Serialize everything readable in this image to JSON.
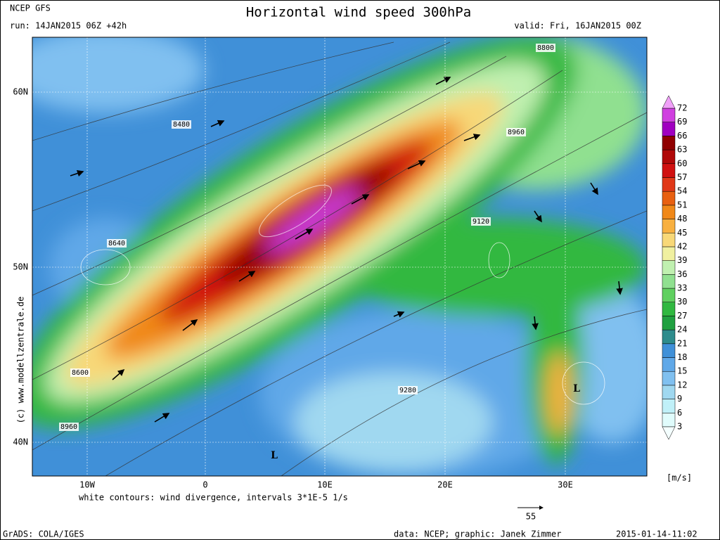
{
  "header": {
    "model": "NCEP GFS",
    "run": "run: 14JAN2015 06Z +42h",
    "title": "Horizontal wind speed 300hPa",
    "valid": "valid: Fri, 16JAN2015 00Z"
  },
  "map": {
    "lat_labels": [
      "60N",
      "50N",
      "40N"
    ],
    "lon_labels": [
      "10W",
      "0",
      "10E",
      "20E",
      "30E"
    ],
    "contour_labels": [
      "8800",
      "8480",
      "8960",
      "9120",
      "8640",
      "8600",
      "8960",
      "9280"
    ],
    "pressure_labels": [
      "L",
      "L"
    ]
  },
  "colorbar": {
    "ticks": [
      3,
      6,
      9,
      12,
      15,
      18,
      21,
      24,
      27,
      30,
      33,
      36,
      39,
      42,
      45,
      48,
      51,
      54,
      57,
      60,
      63,
      66,
      69,
      72
    ],
    "colors": [
      "#f4ffff",
      "#e0fcfc",
      "#c0f0f8",
      "#a0d8f0",
      "#80c0f0",
      "#60a8e8",
      "#4090d8",
      "#2e8c8c",
      "#20a040",
      "#30b840",
      "#60d060",
      "#90e090",
      "#c0f0b0",
      "#f0f0a0",
      "#f8d878",
      "#f8b040",
      "#f08818",
      "#e86010",
      "#e03818",
      "#d01010",
      "#b00808",
      "#900000",
      "#a000c0",
      "#d040e0",
      "#f0a0f8"
    ],
    "unit": "[m/s]"
  },
  "footer": {
    "note": "white contours: wind divergence, intervals 3*1E-5 1/s",
    "arrow_label": "55",
    "software": "GrADS: COLA/IGES",
    "credits": "data: NCEP; graphic: Janek Zimmer",
    "timestamp": "2015-01-14-11:02"
  }
}
